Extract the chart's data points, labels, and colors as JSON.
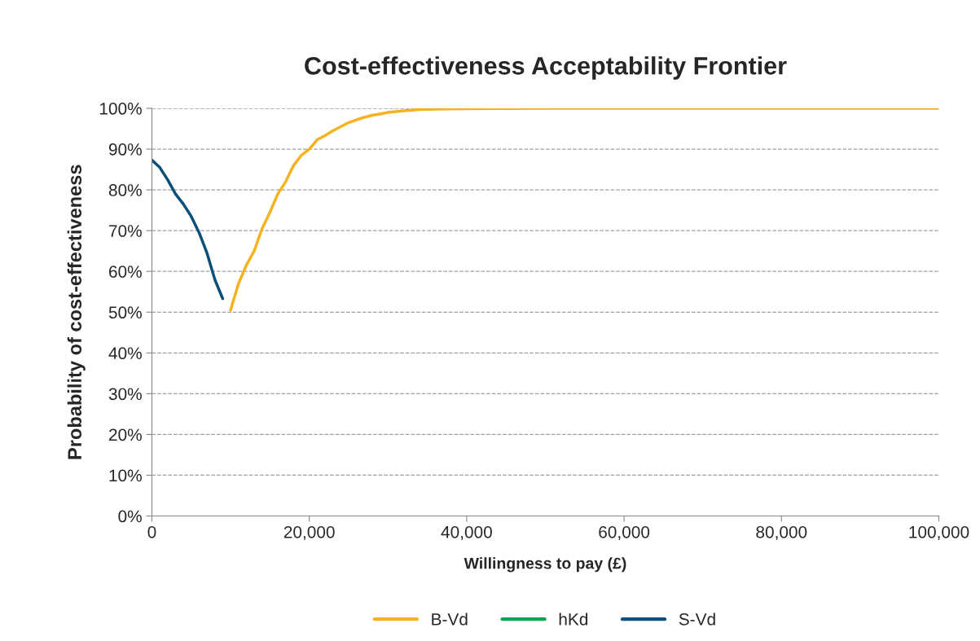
{
  "chart_data": {
    "type": "line",
    "title": "Cost-effectiveness Acceptability Frontier",
    "xlabel": "Willingness to pay (£)",
    "ylabel": "Probability of cost-effectiveness",
    "xlim": [
      0,
      100000
    ],
    "xticks": [
      0,
      {
        "value": 20000,
        "label": "20,000"
      },
      {
        "value": 40000,
        "label": "40,000"
      },
      {
        "value": 60000,
        "label": "60,000"
      },
      {
        "value": 80000,
        "label": "80,000"
      },
      {
        "value": 100000,
        "label": "100,000"
      }
    ],
    "ylim": [
      0,
      100
    ],
    "yticks": [
      {
        "value": 0,
        "label": "0%"
      },
      {
        "value": 10,
        "label": "10%"
      },
      {
        "value": 20,
        "label": "20%"
      },
      {
        "value": 30,
        "label": "30%"
      },
      {
        "value": 40,
        "label": "40%"
      },
      {
        "value": 50,
        "label": "50%"
      },
      {
        "value": 60,
        "label": "60%"
      },
      {
        "value": 70,
        "label": "70%"
      },
      {
        "value": 80,
        "label": "80%"
      },
      {
        "value": 90,
        "label": "90%"
      },
      {
        "value": 100,
        "label": "100%"
      }
    ],
    "grid": "y",
    "legend": "bottom",
    "marker": "none",
    "line_style": "solid",
    "series": [
      {
        "name": "B-Vd",
        "color": "#f6b221",
        "x": [
          10000,
          11000,
          12000,
          13000,
          14000,
          15000,
          16000,
          17000,
          18000,
          19000,
          20000,
          21000,
          22000,
          23000,
          24000,
          25000,
          26000,
          27000,
          28000,
          29000,
          30000,
          32000,
          34000,
          36000,
          40000,
          50000,
          100000
        ],
        "values": [
          50.5,
          57,
          61.5,
          65,
          70.5,
          74.5,
          79,
          82,
          86,
          88.5,
          90,
          92.3,
          93.3,
          94.5,
          95.5,
          96.5,
          97.2,
          97.8,
          98.3,
          98.6,
          99,
          99.4,
          99.7,
          99.8,
          99.9,
          100,
          100
        ]
      },
      {
        "name": "hKd",
        "color": "#00a651"
      },
      {
        "name": "S-Vd",
        "color": "#0b5078",
        "x": [
          0,
          1000,
          2000,
          3000,
          4000,
          5000,
          6000,
          7000,
          8000,
          9000
        ],
        "values": [
          87.3,
          85.5,
          82.5,
          79,
          76.5,
          73.5,
          69.5,
          64.5,
          58,
          53.3
        ]
      }
    ]
  }
}
